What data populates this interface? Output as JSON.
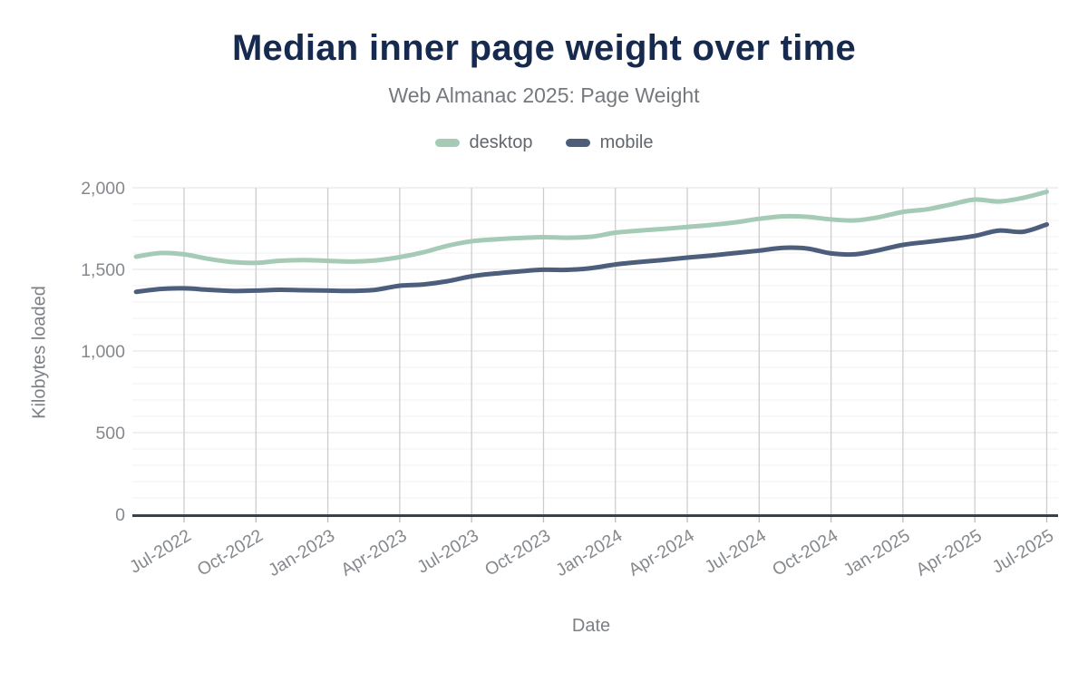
{
  "header": {
    "title": "Median inner page weight over time",
    "subtitle": "Web Almanac 2025: Page Weight"
  },
  "axes": {
    "y_title": "Kilobytes loaded",
    "x_title": "Date"
  },
  "chart_data": {
    "type": "line",
    "title": "Median inner page weight over time",
    "subtitle": "Web Almanac 2025: Page Weight",
    "xlabel": "Date",
    "ylabel": "Kilobytes loaded",
    "ylim": [
      0,
      2000
    ],
    "y_ticks": [
      0,
      500,
      1000,
      1500,
      2000
    ],
    "y_tick_labels": [
      "0",
      "500",
      "1,000",
      "1,500",
      "2,000"
    ],
    "minor_grid_step": 100,
    "grid": "on",
    "legend_position": "top-center",
    "x": [
      "May-2022",
      "Jun-2022",
      "Jul-2022",
      "Aug-2022",
      "Sep-2022",
      "Oct-2022",
      "Nov-2022",
      "Dec-2022",
      "Jan-2023",
      "Feb-2023",
      "Mar-2023",
      "Apr-2023",
      "May-2023",
      "Jun-2023",
      "Jul-2023",
      "Aug-2023",
      "Sep-2023",
      "Oct-2023",
      "Nov-2023",
      "Dec-2023",
      "Jan-2024",
      "Feb-2024",
      "Mar-2024",
      "Apr-2024",
      "May-2024",
      "Jun-2024",
      "Jul-2024",
      "Aug-2024",
      "Sep-2024",
      "Oct-2024",
      "Nov-2024",
      "Dec-2024",
      "Jan-2025",
      "Feb-2025",
      "Mar-2025",
      "Apr-2025",
      "May-2025",
      "Jun-2025",
      "Jul-2025"
    ],
    "x_tick_indices": [
      2,
      5,
      8,
      11,
      14,
      17,
      20,
      23,
      26,
      29,
      32,
      35,
      38
    ],
    "x_tick_labels": [
      "Jul-2022",
      "Oct-2022",
      "Jan-2023",
      "Apr-2023",
      "Jul-2023",
      "Oct-2023",
      "Jan-2024",
      "Apr-2024",
      "Jul-2024",
      "Oct-2024",
      "Jan-2025",
      "Apr-2025",
      "Jul-2025"
    ],
    "series": [
      {
        "name": "desktop",
        "color": "#a5cab6",
        "values": [
          1578,
          1600,
          1592,
          1565,
          1545,
          1540,
          1553,
          1557,
          1552,
          1548,
          1555,
          1575,
          1605,
          1645,
          1672,
          1684,
          1692,
          1697,
          1694,
          1700,
          1725,
          1738,
          1748,
          1760,
          1772,
          1788,
          1810,
          1825,
          1822,
          1806,
          1800,
          1820,
          1852,
          1868,
          1898,
          1928,
          1916,
          1938,
          1975
        ]
      },
      {
        "name": "mobile",
        "color": "#4d5e7d",
        "values": [
          1362,
          1380,
          1384,
          1375,
          1368,
          1370,
          1375,
          1372,
          1370,
          1368,
          1375,
          1400,
          1408,
          1428,
          1458,
          1475,
          1488,
          1498,
          1497,
          1508,
          1530,
          1545,
          1558,
          1572,
          1585,
          1600,
          1615,
          1632,
          1628,
          1598,
          1592,
          1618,
          1650,
          1668,
          1685,
          1705,
          1738,
          1730,
          1775
        ]
      }
    ],
    "colors": {
      "title": "#152a4e",
      "subtitle": "#75797e",
      "tick_labels": "#85898e",
      "axis_line": "#394249",
      "grid_vertical": "#cdcdcd",
      "grid_major": "#e2e2e2",
      "grid_minor": "#f0f0f0"
    }
  }
}
